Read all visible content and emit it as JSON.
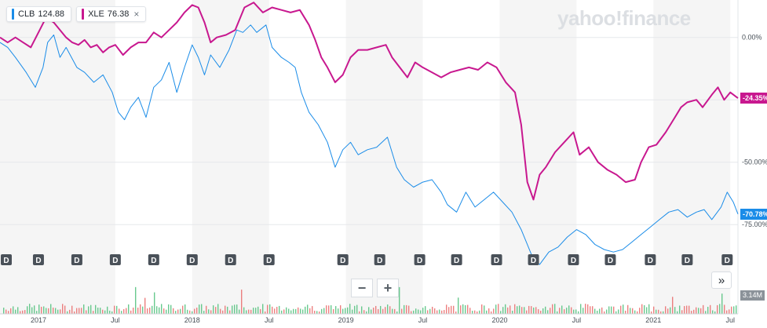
{
  "logo": "yahoo!finance",
  "legend": [
    {
      "symbol": "CLB",
      "value": "124.88",
      "color": "#1a8ce8"
    },
    {
      "symbol": "XLE",
      "value": "76.38",
      "color": "#c8188f",
      "close_icon": "×"
    }
  ],
  "controls": {
    "zoom_out_label": "−",
    "zoom_in_label": "+",
    "next_label": "»"
  },
  "chart_data": {
    "type": "line",
    "x_tick_labels": [
      "2017",
      "Jul",
      "2018",
      "Jul",
      "2019",
      "Jul",
      "2020",
      "Jul",
      "2021",
      "Jul"
    ],
    "y_tick_labels": [
      "0.00%",
      "-25.00%",
      "-50.00%",
      "-75.00%"
    ],
    "y_ticks": [
      0,
      -25,
      -50,
      -75
    ],
    "ylim": [
      -85,
      15
    ],
    "xlim": [
      2016.75,
      2021.55
    ],
    "series": [
      {
        "name": "CLB",
        "color": "#1a8ce8",
        "last_label": "-70.78%",
        "points": [
          [
            2016.75,
            -2
          ],
          [
            2016.8,
            -4
          ],
          [
            2016.85,
            -8
          ],
          [
            2016.92,
            -14
          ],
          [
            2016.98,
            -20
          ],
          [
            2017.03,
            -12
          ],
          [
            2017.06,
            -2
          ],
          [
            2017.1,
            1
          ],
          [
            2017.14,
            -8
          ],
          [
            2017.18,
            -4
          ],
          [
            2017.25,
            -12
          ],
          [
            2017.3,
            -14
          ],
          [
            2017.36,
            -18
          ],
          [
            2017.42,
            -15
          ],
          [
            2017.48,
            -22
          ],
          [
            2017.52,
            -30
          ],
          [
            2017.56,
            -33
          ],
          [
            2017.6,
            -28
          ],
          [
            2017.65,
            -24
          ],
          [
            2017.7,
            -32
          ],
          [
            2017.75,
            -20
          ],
          [
            2017.8,
            -17
          ],
          [
            2017.85,
            -10
          ],
          [
            2017.9,
            -22
          ],
          [
            2017.95,
            -12
          ],
          [
            2018.0,
            -3
          ],
          [
            2018.04,
            -8
          ],
          [
            2018.08,
            -15
          ],
          [
            2018.12,
            -7
          ],
          [
            2018.18,
            -12
          ],
          [
            2018.24,
            -5
          ],
          [
            2018.29,
            3
          ],
          [
            2018.33,
            2
          ],
          [
            2018.38,
            5
          ],
          [
            2018.42,
            2
          ],
          [
            2018.48,
            5
          ],
          [
            2018.52,
            -4
          ],
          [
            2018.58,
            -8
          ],
          [
            2018.63,
            -10
          ],
          [
            2018.67,
            -12
          ],
          [
            2018.71,
            -22
          ],
          [
            2018.76,
            -30
          ],
          [
            2018.82,
            -35
          ],
          [
            2018.88,
            -42
          ],
          [
            2018.93,
            -52
          ],
          [
            2018.98,
            -45
          ],
          [
            2019.03,
            -42
          ],
          [
            2019.08,
            -47
          ],
          [
            2019.14,
            -45
          ],
          [
            2019.2,
            -44
          ],
          [
            2019.27,
            -40
          ],
          [
            2019.33,
            -52
          ],
          [
            2019.38,
            -57
          ],
          [
            2019.44,
            -60
          ],
          [
            2019.5,
            -58
          ],
          [
            2019.56,
            -57
          ],
          [
            2019.62,
            -62
          ],
          [
            2019.66,
            -67
          ],
          [
            2019.72,
            -70
          ],
          [
            2019.78,
            -62
          ],
          [
            2019.84,
            -68
          ],
          [
            2019.9,
            -65
          ],
          [
            2019.96,
            -62
          ],
          [
            2020.02,
            -66
          ],
          [
            2020.08,
            -70
          ],
          [
            2020.14,
            -77
          ],
          [
            2020.18,
            -83
          ],
          [
            2020.22,
            -89
          ],
          [
            2020.26,
            -91
          ],
          [
            2020.32,
            -86
          ],
          [
            2020.38,
            -84
          ],
          [
            2020.44,
            -80
          ],
          [
            2020.5,
            -77
          ],
          [
            2020.56,
            -79
          ],
          [
            2020.62,
            -83
          ],
          [
            2020.68,
            -85
          ],
          [
            2020.74,
            -86
          ],
          [
            2020.8,
            -85
          ],
          [
            2020.86,
            -82
          ],
          [
            2020.92,
            -79
          ],
          [
            2020.98,
            -76
          ],
          [
            2021.04,
            -73
          ],
          [
            2021.1,
            -70
          ],
          [
            2021.16,
            -69
          ],
          [
            2021.22,
            -72
          ],
          [
            2021.28,
            -70
          ],
          [
            2021.33,
            -69
          ],
          [
            2021.38,
            -73
          ],
          [
            2021.44,
            -68
          ],
          [
            2021.48,
            -62
          ],
          [
            2021.52,
            -66
          ],
          [
            2021.55,
            -70.78
          ]
        ]
      },
      {
        "name": "XLE",
        "color": "#c8188f",
        "last_label": "-24.35%",
        "points": [
          [
            2016.75,
            0
          ],
          [
            2016.8,
            -2
          ],
          [
            2016.85,
            0
          ],
          [
            2016.9,
            -2
          ],
          [
            2016.95,
            -4
          ],
          [
            2017.0,
            2
          ],
          [
            2017.05,
            8
          ],
          [
            2017.1,
            6
          ],
          [
            2017.14,
            3
          ],
          [
            2017.18,
            0
          ],
          [
            2017.22,
            -2
          ],
          [
            2017.26,
            -3
          ],
          [
            2017.3,
            -1
          ],
          [
            2017.34,
            -4
          ],
          [
            2017.38,
            -3
          ],
          [
            2017.42,
            -6
          ],
          [
            2017.46,
            -4
          ],
          [
            2017.5,
            -3
          ],
          [
            2017.55,
            -7
          ],
          [
            2017.6,
            -4
          ],
          [
            2017.65,
            -2
          ],
          [
            2017.7,
            -2
          ],
          [
            2017.75,
            2
          ],
          [
            2017.8,
            0
          ],
          [
            2017.85,
            3
          ],
          [
            2017.9,
            6
          ],
          [
            2017.95,
            10
          ],
          [
            2018.0,
            13
          ],
          [
            2018.04,
            12
          ],
          [
            2018.08,
            6
          ],
          [
            2018.12,
            -2
          ],
          [
            2018.16,
            0
          ],
          [
            2018.22,
            1
          ],
          [
            2018.28,
            3
          ],
          [
            2018.34,
            12
          ],
          [
            2018.4,
            14
          ],
          [
            2018.46,
            10
          ],
          [
            2018.52,
            12
          ],
          [
            2018.58,
            11
          ],
          [
            2018.64,
            10
          ],
          [
            2018.7,
            11
          ],
          [
            2018.76,
            5
          ],
          [
            2018.8,
            -1
          ],
          [
            2018.84,
            -8
          ],
          [
            2018.88,
            -12
          ],
          [
            2018.93,
            -18
          ],
          [
            2018.98,
            -15
          ],
          [
            2019.03,
            -8
          ],
          [
            2019.08,
            -5
          ],
          [
            2019.14,
            -5
          ],
          [
            2019.2,
            -4
          ],
          [
            2019.26,
            -3
          ],
          [
            2019.3,
            -8
          ],
          [
            2019.35,
            -12
          ],
          [
            2019.4,
            -16
          ],
          [
            2019.45,
            -10
          ],
          [
            2019.5,
            -12
          ],
          [
            2019.56,
            -14
          ],
          [
            2019.62,
            -16
          ],
          [
            2019.68,
            -14
          ],
          [
            2019.74,
            -13
          ],
          [
            2019.8,
            -12
          ],
          [
            2019.86,
            -13
          ],
          [
            2019.92,
            -10
          ],
          [
            2019.98,
            -12
          ],
          [
            2020.04,
            -18
          ],
          [
            2020.1,
            -22
          ],
          [
            2020.14,
            -35
          ],
          [
            2020.18,
            -58
          ],
          [
            2020.22,
            -65
          ],
          [
            2020.26,
            -55
          ],
          [
            2020.3,
            -52
          ],
          [
            2020.36,
            -46
          ],
          [
            2020.42,
            -42
          ],
          [
            2020.48,
            -38
          ],
          [
            2020.52,
            -47
          ],
          [
            2020.58,
            -44
          ],
          [
            2020.64,
            -50
          ],
          [
            2020.7,
            -53
          ],
          [
            2020.76,
            -55
          ],
          [
            2020.82,
            -58
          ],
          [
            2020.88,
            -57
          ],
          [
            2020.92,
            -50
          ],
          [
            2020.97,
            -44
          ],
          [
            2021.02,
            -43
          ],
          [
            2021.08,
            -38
          ],
          [
            2021.14,
            -32
          ],
          [
            2021.18,
            -28
          ],
          [
            2021.22,
            -26
          ],
          [
            2021.28,
            -25
          ],
          [
            2021.32,
            -28
          ],
          [
            2021.38,
            -23
          ],
          [
            2021.42,
            -20
          ],
          [
            2021.46,
            -25
          ],
          [
            2021.5,
            -22
          ],
          [
            2021.55,
            -24.35
          ]
        ]
      }
    ],
    "grid": true,
    "legend_position": "top-left",
    "volume_label": "3.14M",
    "dividend_marker_label": "D",
    "dividend_markers": [
      2016.75,
      2017.0,
      2017.25,
      2017.5,
      2017.75,
      2018.0,
      2018.25,
      2018.5,
      2018.98,
      2019.22,
      2019.48,
      2019.72,
      2019.98,
      2020.22,
      2020.48,
      2020.72,
      2020.98,
      2021.22,
      2021.48
    ]
  }
}
